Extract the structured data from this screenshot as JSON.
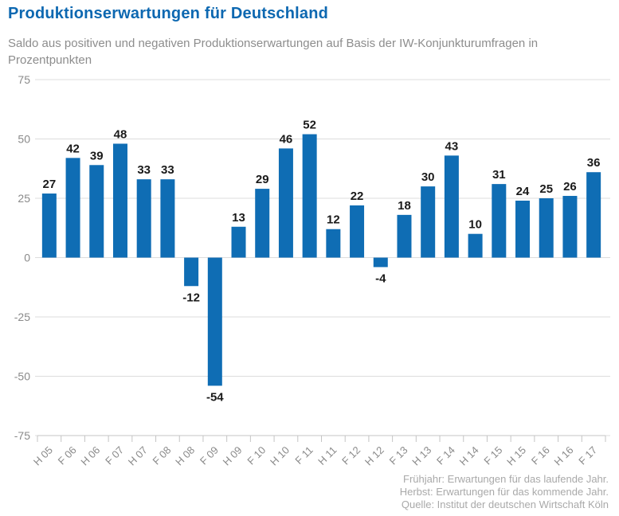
{
  "header": {
    "title": "Produktionserwartungen für Deutschland",
    "subtitle": "Saldo aus positiven und negativen Produktionserwartungen auf Basis der IW-Konjunkturumfragen in Prozentpunkten"
  },
  "chart_data": {
    "type": "bar",
    "title": "Produktionserwartungen für Deutschland",
    "subtitle": "Saldo aus positiven und negativen Produktionserwartungen auf Basis der IW-Konjunkturumfragen in Prozentpunkten",
    "categories": [
      "H 05",
      "F 06",
      "H 06",
      "F 07",
      "H 07",
      "F 08",
      "H 08",
      "F 09",
      "H 09",
      "F 10",
      "H 10",
      "F 11",
      "H 11",
      "F 12",
      "H 12",
      "F 13",
      "H 13",
      "F 14",
      "H 14",
      "F 15",
      "H 15",
      "F 16",
      "H 16",
      "F 17"
    ],
    "values": [
      27,
      42,
      39,
      48,
      33,
      33,
      -12,
      -54,
      13,
      29,
      46,
      52,
      12,
      22,
      -4,
      18,
      30,
      43,
      10,
      31,
      24,
      25,
      26,
      36
    ],
    "xlabel": "",
    "ylabel": "",
    "ylim": [
      -75,
      75
    ],
    "yticks": [
      75,
      50,
      25,
      0,
      -25,
      -50,
      -75
    ],
    "grid": true,
    "value_labels": true,
    "legend": "none",
    "bar_color": "#0f6db4",
    "grid_color": "#dcdcdc",
    "axis_color": "#c4c4c4",
    "tick_label_color": "#8a8a8a",
    "value_label_color": "#1a1a1a"
  },
  "footer": {
    "lines": [
      "Frühjahr: Erwartungen für das laufende Jahr.",
      "Herbst: Erwartungen für das kommende Jahr.",
      "Quelle: Institut der deutschen Wirtschaft Köln"
    ]
  }
}
